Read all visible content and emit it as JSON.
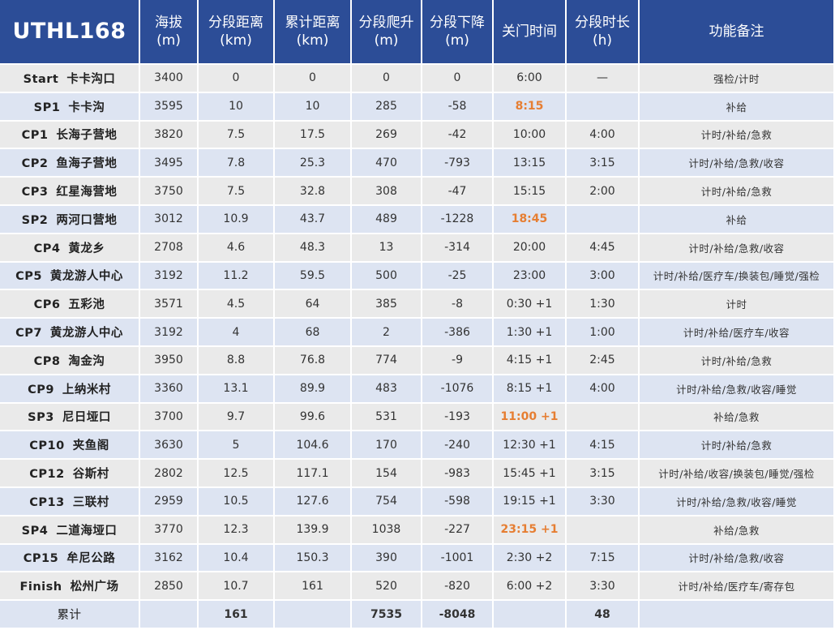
{
  "header": {
    "brand": "UTHL168",
    "cols": [
      {
        "l1": "海拔",
        "l2": "(m)"
      },
      {
        "l1": "分段距离",
        "l2": "(km)"
      },
      {
        "l1": "累计距离",
        "l2": "(km)"
      },
      {
        "l1": "分段爬升",
        "l2": "(m)"
      },
      {
        "l1": "分段下降",
        "l2": "(m)"
      },
      {
        "l1": "关门时间",
        "l2": ""
      },
      {
        "l1": "分段时长",
        "l2": "(h)"
      },
      {
        "l1": "功能备注",
        "l2": ""
      }
    ]
  },
  "rows": [
    {
      "code": "Start",
      "name": "卡卡沟口",
      "alt": "3400",
      "seg": "0",
      "cum": "0",
      "up": "0",
      "down": "0",
      "close": "6:00",
      "dur": "—",
      "notes": "强检/计时",
      "hl": false
    },
    {
      "code": "SP1",
      "name": "卡卡沟",
      "alt": "3595",
      "seg": "10",
      "cum": "10",
      "up": "285",
      "down": "-58",
      "close": "8:15",
      "dur": "",
      "notes": "补给",
      "hl": true
    },
    {
      "code": "CP1",
      "name": "长海子营地",
      "alt": "3820",
      "seg": "7.5",
      "cum": "17.5",
      "up": "269",
      "down": "-42",
      "close": "10:00",
      "dur": "4:00",
      "notes": "计时/补给/急救",
      "hl": false
    },
    {
      "code": "CP2",
      "name": "鱼海子营地",
      "alt": "3495",
      "seg": "7.8",
      "cum": "25.3",
      "up": "470",
      "down": "-793",
      "close": "13:15",
      "dur": "3:15",
      "notes": "计时/补给/急救/收容",
      "hl": false
    },
    {
      "code": "CP3",
      "name": "红星海营地",
      "alt": "3750",
      "seg": "7.5",
      "cum": "32.8",
      "up": "308",
      "down": "-47",
      "close": "15:15",
      "dur": "2:00",
      "notes": "计时/补给/急救",
      "hl": false
    },
    {
      "code": "SP2",
      "name": "两河口营地",
      "alt": "3012",
      "seg": "10.9",
      "cum": "43.7",
      "up": "489",
      "down": "-1228",
      "close": "18:45",
      "dur": "",
      "notes": "补给",
      "hl": true
    },
    {
      "code": "CP4",
      "name": "黄龙乡",
      "alt": "2708",
      "seg": "4.6",
      "cum": "48.3",
      "up": "13",
      "down": "-314",
      "close": "20:00",
      "dur": "4:45",
      "notes": "计时/补给/急救/收容",
      "hl": false
    },
    {
      "code": "CP5",
      "name": "黄龙游人中心",
      "alt": "3192",
      "seg": "11.2",
      "cum": "59.5",
      "up": "500",
      "down": "-25",
      "close": "23:00",
      "dur": "3:00",
      "notes": "计时/补给/医疗车/换装包/睡觉/强检",
      "hl": false
    },
    {
      "code": "CP6",
      "name": "五彩池",
      "alt": "3571",
      "seg": "4.5",
      "cum": "64",
      "up": "385",
      "down": "-8",
      "close": "0:30 +1",
      "dur": "1:30",
      "notes": "计时",
      "hl": false
    },
    {
      "code": "CP7",
      "name": "黄龙游人中心",
      "alt": "3192",
      "seg": "4",
      "cum": "68",
      "up": "2",
      "down": "-386",
      "close": "1:30 +1",
      "dur": "1:00",
      "notes": "计时/补给/医疗车/收容",
      "hl": false
    },
    {
      "code": "CP8",
      "name": "淘金沟",
      "alt": "3950",
      "seg": "8.8",
      "cum": "76.8",
      "up": "774",
      "down": "-9",
      "close": "4:15 +1",
      "dur": "2:45",
      "notes": "计时/补给/急救",
      "hl": false
    },
    {
      "code": "CP9",
      "name": "上纳米村",
      "alt": "3360",
      "seg": "13.1",
      "cum": "89.9",
      "up": "483",
      "down": "-1076",
      "close": "8:15 +1",
      "dur": "4:00",
      "notes": "计时/补给/急救/收容/睡觉",
      "hl": false
    },
    {
      "code": "SP3",
      "name": "尼日垭口",
      "alt": "3700",
      "seg": "9.7",
      "cum": "99.6",
      "up": "531",
      "down": "-193",
      "close": "11:00 +1",
      "dur": "",
      "notes": "补给/急救",
      "hl": true
    },
    {
      "code": "CP10",
      "name": "夹鱼阁",
      "alt": "3630",
      "seg": "5",
      "cum": "104.6",
      "up": "170",
      "down": "-240",
      "close": "12:30 +1",
      "dur": "4:15",
      "notes": "计时/补给/急救",
      "hl": false
    },
    {
      "code": "CP12",
      "name": "谷斯村",
      "alt": "2802",
      "seg": "12.5",
      "cum": "117.1",
      "up": "154",
      "down": "-983",
      "close": "15:45 +1",
      "dur": "3:15",
      "notes": "计时/补给/收容/换装包/睡觉/强检",
      "hl": false
    },
    {
      "code": "CP13",
      "name": "三联村",
      "alt": "2959",
      "seg": "10.5",
      "cum": "127.6",
      "up": "754",
      "down": "-598",
      "close": "19:15 +1",
      "dur": "3:30",
      "notes": "计时/补给/急救/收容/睡觉",
      "hl": false
    },
    {
      "code": "SP4",
      "name": "二道海垭口",
      "alt": "3770",
      "seg": "12.3",
      "cum": "139.9",
      "up": "1038",
      "down": "-227",
      "close": "23:15 +1",
      "dur": "",
      "notes": "补给/急救",
      "hl": true
    },
    {
      "code": "CP15",
      "name": "牟尼公路",
      "alt": "3162",
      "seg": "10.4",
      "cum": "150.3",
      "up": "390",
      "down": "-1001",
      "close": "2:30 +2",
      "dur": "7:15",
      "notes": "计时/补给/急救/收容",
      "hl": false
    },
    {
      "code": "Finish",
      "name": "松州广场",
      "alt": "2850",
      "seg": "10.7",
      "cum": "161",
      "up": "520",
      "down": "-820",
      "close": "6:00 +2",
      "dur": "3:30",
      "notes": "计时/补给/医疗车/寄存包",
      "hl": false
    }
  ],
  "totals": {
    "label": "累计",
    "alt": "",
    "seg": "161",
    "cum": "",
    "up": "7535",
    "down": "-8048",
    "close": "",
    "dur": "48",
    "notes": ""
  },
  "colors": {
    "header": "#2c4d97",
    "row_gray": "#eaeaea",
    "row_blue": "#dde4f2",
    "highlight": "#e67e32"
  }
}
